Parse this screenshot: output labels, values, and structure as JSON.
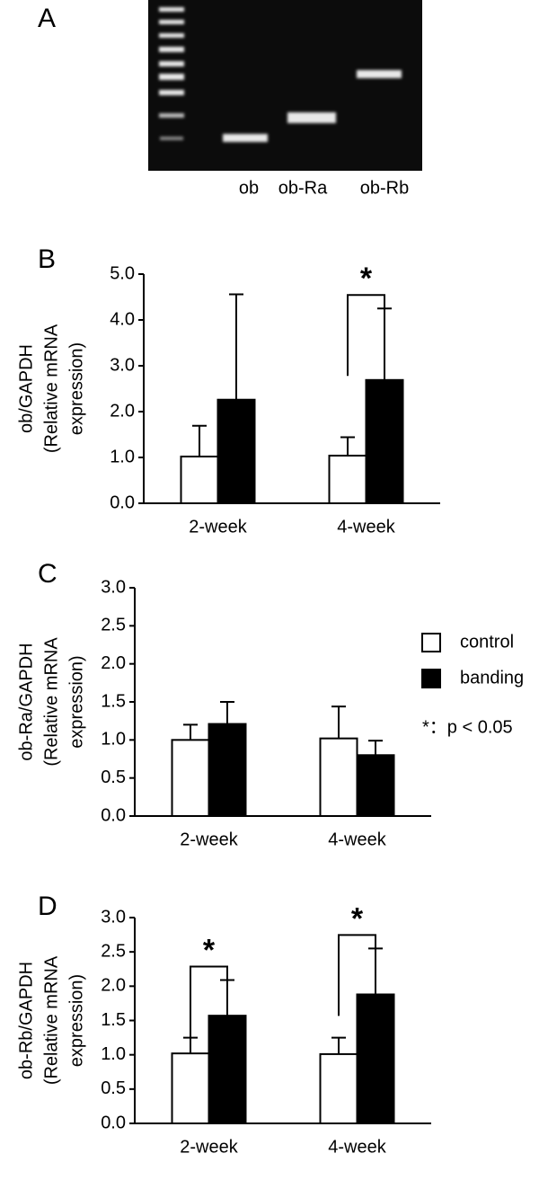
{
  "gel": {
    "label": "A",
    "lanes": [
      "ob",
      "ob-Ra",
      "ob-Rb"
    ]
  },
  "chart_data": [
    {
      "type": "bar",
      "label": "B",
      "ylabel": [
        "ob/GAPDH",
        "(Relative mRNA",
        "expression)"
      ],
      "categories": [
        "2-week",
        "4-week"
      ],
      "series": [
        {
          "color": "#ffffff",
          "values": [
            1.02,
            1.04
          ],
          "errors": [
            0.67,
            0.4
          ]
        },
        {
          "color": "#000000",
          "values": [
            2.26,
            2.69
          ],
          "errors": [
            2.3,
            1.56
          ]
        }
      ],
      "significance": [
        null,
        "*"
      ],
      "ylim": [
        0,
        5
      ],
      "yticks": [
        {
          "value": 0,
          "label": "0.0"
        },
        {
          "value": 1,
          "label": "1.0"
        },
        {
          "value": 2,
          "label": "2.0"
        },
        {
          "value": 3,
          "label": "3.0"
        },
        {
          "value": 4,
          "label": "4.0"
        },
        {
          "value": 5,
          "label": "5.0"
        }
      ],
      "legend": false
    },
    {
      "type": "bar",
      "label": "C",
      "ylabel": [
        "ob-Ra/GAPDH",
        "(Relative mRNA",
        "expression)"
      ],
      "categories": [
        "2-week",
        "4-week"
      ],
      "series": [
        {
          "name": "control",
          "color": "#ffffff",
          "values": [
            1.0,
            1.02
          ],
          "errors": [
            0.2,
            0.42
          ]
        },
        {
          "name": "banding",
          "color": "#000000",
          "values": [
            1.21,
            0.8
          ],
          "errors": [
            0.29,
            0.19
          ]
        }
      ],
      "significance": [
        null,
        null
      ],
      "ylim": [
        0,
        3
      ],
      "yticks": [
        {
          "value": 0,
          "label": "0.0"
        },
        0.5,
        {
          "value": 1,
          "label": "1.0"
        },
        1.5,
        {
          "value": 2,
          "label": "2.0"
        },
        2.5,
        {
          "value": 3,
          "label": "3.0"
        }
      ],
      "legend": "right",
      "note": "*：p < 0.05"
    },
    {
      "type": "bar",
      "label": "D",
      "ylabel": [
        "ob-Rb/GAPDH",
        "(Relative mRNA",
        "expression)"
      ],
      "categories": [
        "2-week",
        "4-week"
      ],
      "series": [
        {
          "color": "#ffffff",
          "values": [
            1.02,
            1.01
          ],
          "errors": [
            0.23,
            0.24
          ]
        },
        {
          "color": "#000000",
          "values": [
            1.57,
            1.88
          ],
          "errors": [
            0.52,
            0.67
          ]
        }
      ],
      "significance": [
        "*",
        "*"
      ],
      "ylim": [
        0,
        3
      ],
      "yticks": [
        {
          "value": 0,
          "label": "0.0"
        },
        0.5,
        {
          "value": 1,
          "label": "1.0"
        },
        1.5,
        {
          "value": 2,
          "label": "2.0"
        },
        2.5,
        {
          "value": 3,
          "label": "3.0"
        }
      ],
      "legend": false
    }
  ]
}
